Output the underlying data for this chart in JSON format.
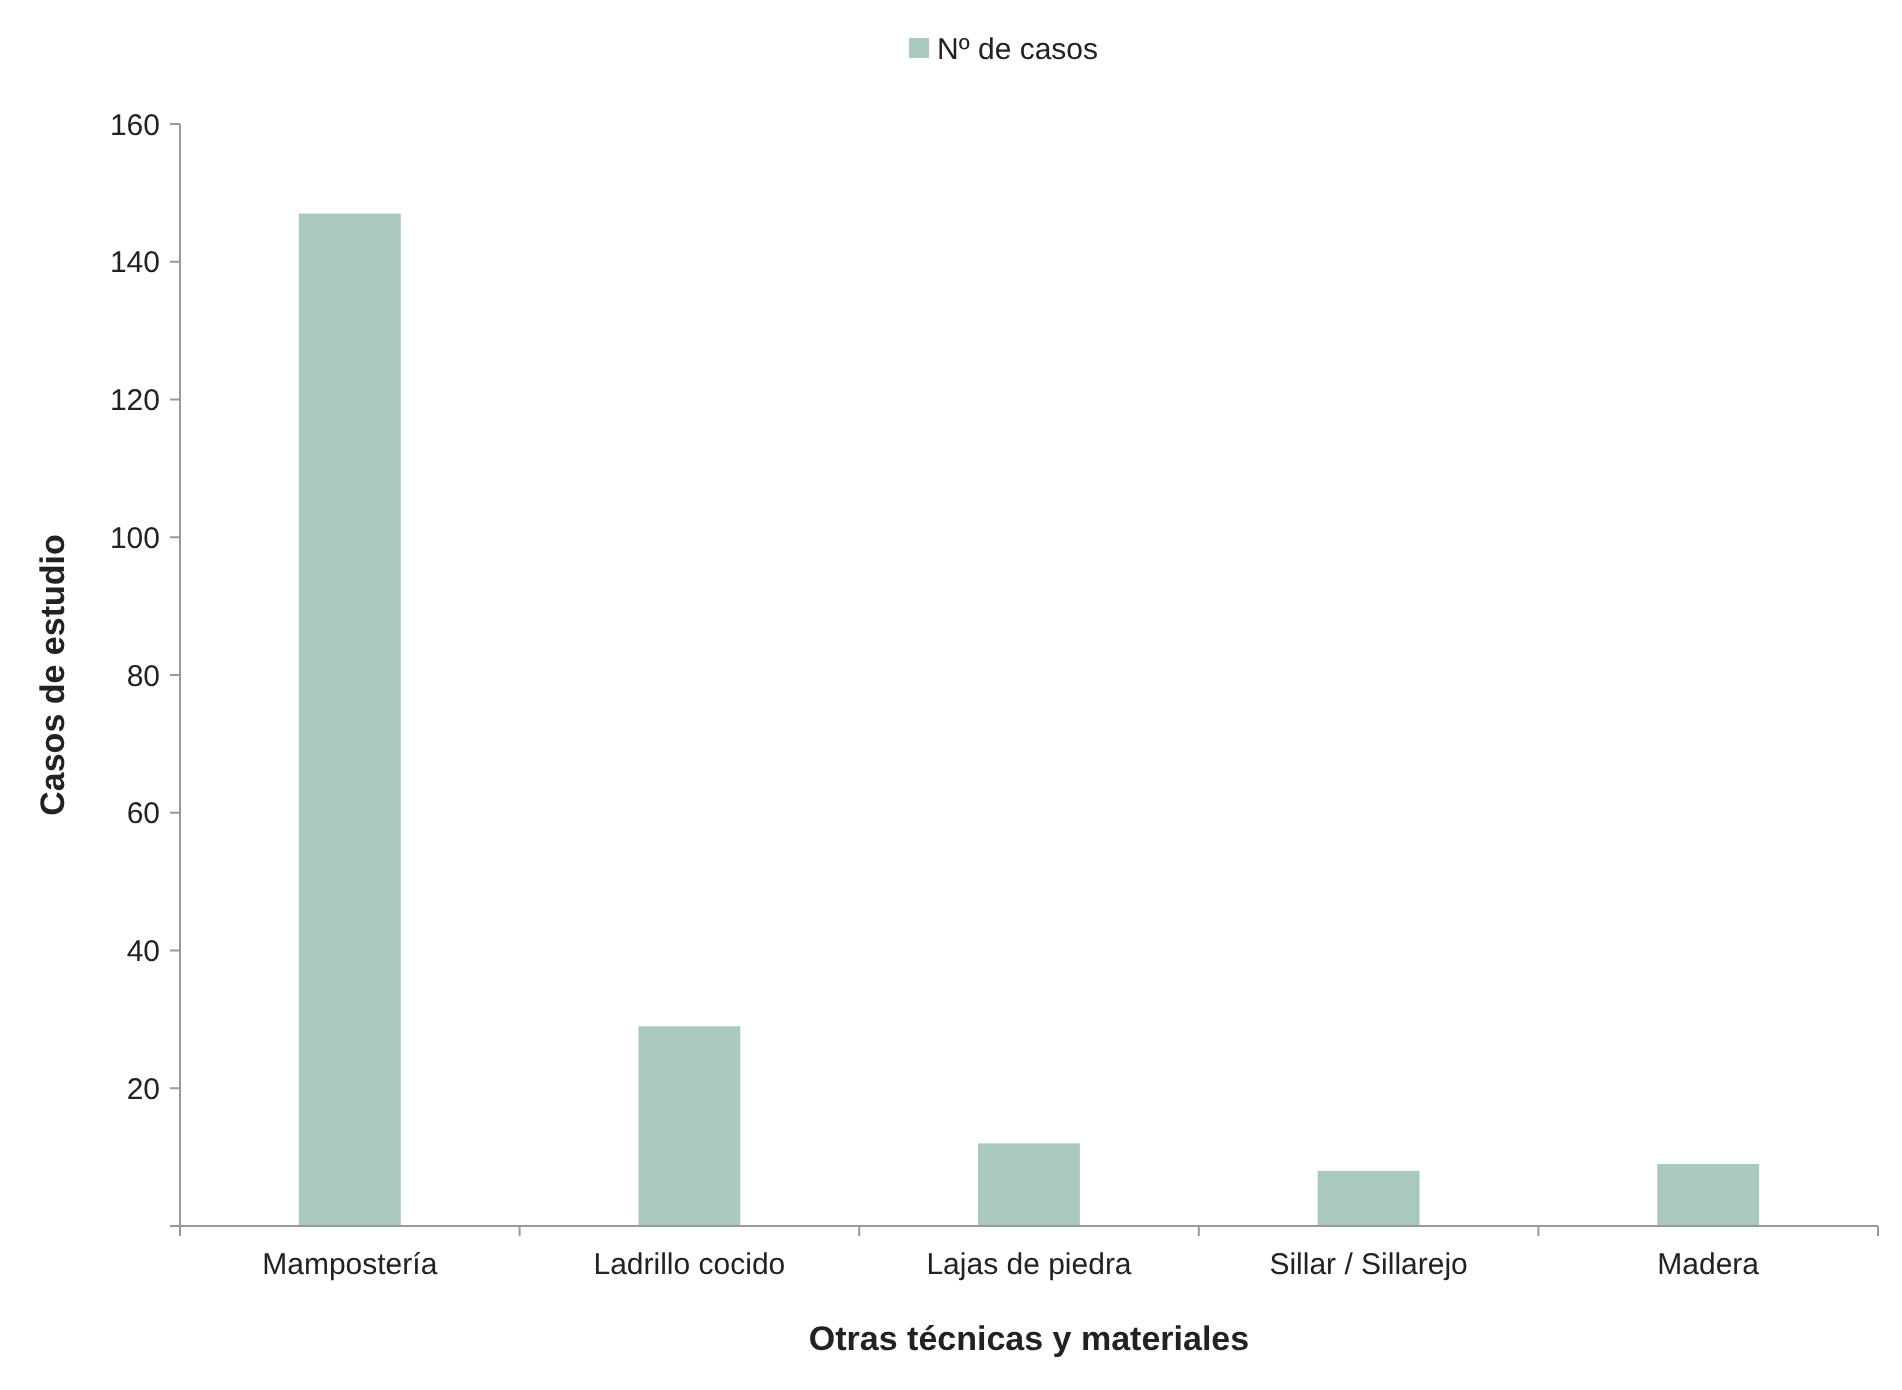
{
  "chart_data": {
    "type": "bar",
    "xlabel": "Otras técnicas y materiales",
    "ylabel": "Casos de estudio",
    "categories": [
      "Mampostería",
      "Ladrillo cocido",
      "Lajas de piedra",
      "Sillar / Sillarejo",
      "Madera"
    ],
    "series": [
      {
        "name": "Nº de casos",
        "color": "#a9c9bd",
        "values": [
          147,
          29,
          12,
          8,
          9
        ]
      }
    ],
    "ylim": [
      0,
      160
    ],
    "yticks": [
      {
        "value": 0,
        "label": null
      },
      20,
      40,
      60,
      80,
      100,
      120,
      140,
      160
    ],
    "grid": false,
    "legend": "top"
  }
}
